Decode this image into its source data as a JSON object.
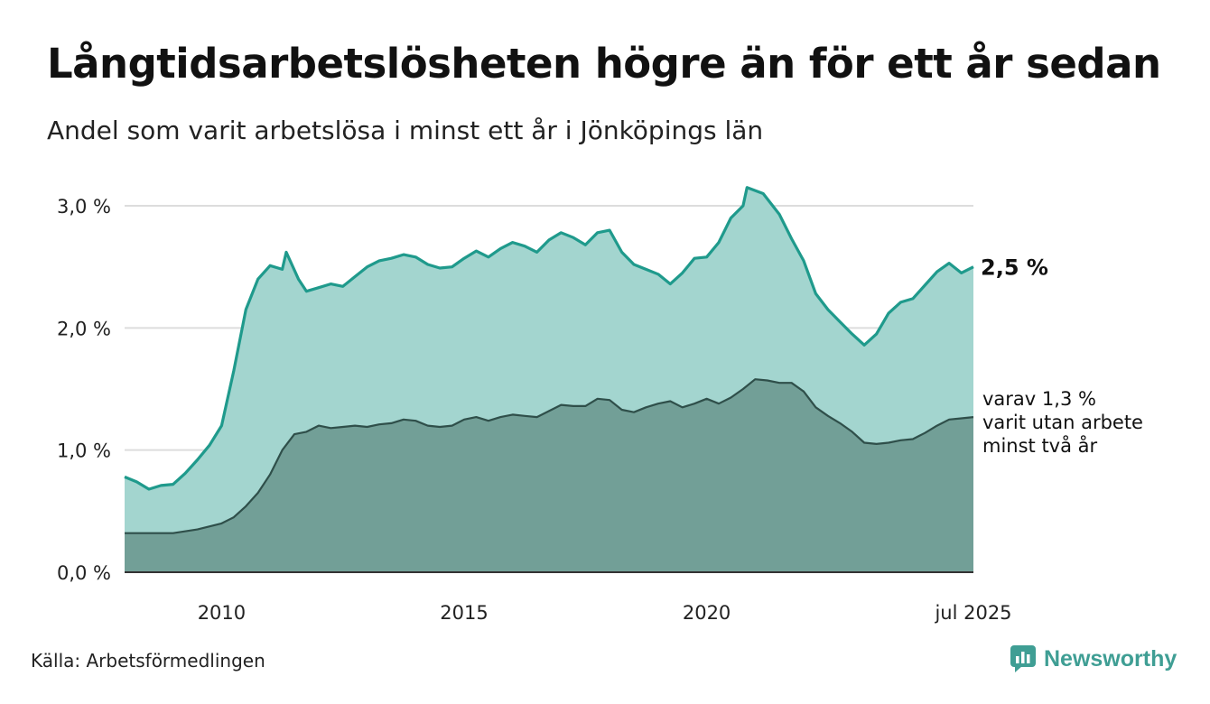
{
  "title": "Långtidsarbetslösheten högre än för ett år sedan",
  "subtitle": "Andel som varit arbetslösa i minst ett år i Jönköpings län",
  "source": "Källa: Arbetsförmedlingen",
  "brand": {
    "name": "Newsworthy",
    "icon": "newsworthy-logo-icon",
    "color": "#3f9e94"
  },
  "chart_data": {
    "type": "area",
    "x_start": "2008-01",
    "x_end": "2025-07",
    "ylim": [
      0,
      3.0
    ],
    "y_ticks": [
      {
        "value": 0,
        "label": "0,0 %"
      },
      {
        "value": 1,
        "label": "1,0 %"
      },
      {
        "value": 2,
        "label": "2,0 %"
      },
      {
        "value": 3,
        "label": "3,0 %"
      }
    ],
    "x_ticks": [
      {
        "date": "2010-01",
        "label": "2010"
      },
      {
        "date": "2015-01",
        "label": "2015"
      },
      {
        "date": "2020-01",
        "label": "2020"
      },
      {
        "date": "2025-07",
        "label": "jul 2025"
      }
    ],
    "grid": true,
    "colors": {
      "series1_fill": "#a3d5cf",
      "series1_line": "#1f9a8c",
      "series2_fill": "#729f97",
      "series2_line": "#2f4f4a"
    },
    "series": [
      {
        "end_label": "2,5 %",
        "points": [
          [
            "2008-01",
            0.78
          ],
          [
            "2008-04",
            0.74
          ],
          [
            "2008-07",
            0.68
          ],
          [
            "2008-10",
            0.71
          ],
          [
            "2009-01",
            0.72
          ],
          [
            "2009-04",
            0.81
          ],
          [
            "2009-07",
            0.92
          ],
          [
            "2009-10",
            1.04
          ],
          [
            "2010-01",
            1.2
          ],
          [
            "2010-04",
            1.65
          ],
          [
            "2010-07",
            2.15
          ],
          [
            "2010-10",
            2.4
          ],
          [
            "2011-01",
            2.51
          ],
          [
            "2011-04",
            2.48
          ],
          [
            "2011-05",
            2.62
          ],
          [
            "2011-08",
            2.4
          ],
          [
            "2011-10",
            2.3
          ],
          [
            "2012-01",
            2.33
          ],
          [
            "2012-04",
            2.36
          ],
          [
            "2012-07",
            2.34
          ],
          [
            "2012-10",
            2.42
          ],
          [
            "2013-01",
            2.5
          ],
          [
            "2013-04",
            2.55
          ],
          [
            "2013-07",
            2.57
          ],
          [
            "2013-10",
            2.6
          ],
          [
            "2014-01",
            2.58
          ],
          [
            "2014-04",
            2.52
          ],
          [
            "2014-07",
            2.49
          ],
          [
            "2014-10",
            2.5
          ],
          [
            "2015-01",
            2.57
          ],
          [
            "2015-04",
            2.63
          ],
          [
            "2015-07",
            2.58
          ],
          [
            "2015-10",
            2.65
          ],
          [
            "2016-01",
            2.7
          ],
          [
            "2016-04",
            2.67
          ],
          [
            "2016-07",
            2.62
          ],
          [
            "2016-10",
            2.72
          ],
          [
            "2017-01",
            2.78
          ],
          [
            "2017-04",
            2.74
          ],
          [
            "2017-07",
            2.68
          ],
          [
            "2017-10",
            2.78
          ],
          [
            "2018-01",
            2.8
          ],
          [
            "2018-04",
            2.62
          ],
          [
            "2018-07",
            2.52
          ],
          [
            "2018-10",
            2.48
          ],
          [
            "2019-01",
            2.44
          ],
          [
            "2019-04",
            2.36
          ],
          [
            "2019-07",
            2.45
          ],
          [
            "2019-10",
            2.57
          ],
          [
            "2020-01",
            2.58
          ],
          [
            "2020-04",
            2.7
          ],
          [
            "2020-07",
            2.9
          ],
          [
            "2020-10",
            3.0
          ],
          [
            "2020-11",
            3.15
          ],
          [
            "2021-03",
            3.1
          ],
          [
            "2021-07",
            2.93
          ],
          [
            "2021-10",
            2.73
          ],
          [
            "2022-01",
            2.55
          ],
          [
            "2022-04",
            2.28
          ],
          [
            "2022-07",
            2.15
          ],
          [
            "2022-10",
            2.05
          ],
          [
            "2023-01",
            1.95
          ],
          [
            "2023-04",
            1.86
          ],
          [
            "2023-07",
            1.95
          ],
          [
            "2023-10",
            2.12
          ],
          [
            "2024-01",
            2.21
          ],
          [
            "2024-04",
            2.24
          ],
          [
            "2024-07",
            2.35
          ],
          [
            "2024-10",
            2.46
          ],
          [
            "2025-01",
            2.53
          ],
          [
            "2025-04",
            2.45
          ],
          [
            "2025-07",
            2.5
          ]
        ]
      },
      {
        "end_label_lines": [
          "varav 1,3 %",
          "varit utan arbete",
          "minst två år"
        ],
        "points": [
          [
            "2008-01",
            0.32
          ],
          [
            "2008-07",
            0.32
          ],
          [
            "2009-01",
            0.32
          ],
          [
            "2009-07",
            0.35
          ],
          [
            "2010-01",
            0.4
          ],
          [
            "2010-04",
            0.45
          ],
          [
            "2010-07",
            0.54
          ],
          [
            "2010-10",
            0.65
          ],
          [
            "2011-01",
            0.8
          ],
          [
            "2011-04",
            1.0
          ],
          [
            "2011-07",
            1.13
          ],
          [
            "2011-10",
            1.15
          ],
          [
            "2012-01",
            1.2
          ],
          [
            "2012-04",
            1.18
          ],
          [
            "2012-07",
            1.19
          ],
          [
            "2012-10",
            1.2
          ],
          [
            "2013-01",
            1.19
          ],
          [
            "2013-04",
            1.21
          ],
          [
            "2013-07",
            1.22
          ],
          [
            "2013-10",
            1.25
          ],
          [
            "2014-01",
            1.24
          ],
          [
            "2014-04",
            1.2
          ],
          [
            "2014-07",
            1.19
          ],
          [
            "2014-10",
            1.2
          ],
          [
            "2015-01",
            1.25
          ],
          [
            "2015-04",
            1.27
          ],
          [
            "2015-07",
            1.24
          ],
          [
            "2015-10",
            1.27
          ],
          [
            "2016-01",
            1.29
          ],
          [
            "2016-04",
            1.28
          ],
          [
            "2016-07",
            1.27
          ],
          [
            "2016-10",
            1.32
          ],
          [
            "2017-01",
            1.37
          ],
          [
            "2017-04",
            1.36
          ],
          [
            "2017-07",
            1.36
          ],
          [
            "2017-10",
            1.42
          ],
          [
            "2018-01",
            1.41
          ],
          [
            "2018-04",
            1.33
          ],
          [
            "2018-07",
            1.31
          ],
          [
            "2018-10",
            1.35
          ],
          [
            "2019-01",
            1.38
          ],
          [
            "2019-04",
            1.4
          ],
          [
            "2019-07",
            1.35
          ],
          [
            "2019-10",
            1.38
          ],
          [
            "2020-01",
            1.42
          ],
          [
            "2020-04",
            1.38
          ],
          [
            "2020-07",
            1.43
          ],
          [
            "2020-10",
            1.5
          ],
          [
            "2021-01",
            1.58
          ],
          [
            "2021-04",
            1.57
          ],
          [
            "2021-07",
            1.55
          ],
          [
            "2021-10",
            1.55
          ],
          [
            "2022-01",
            1.48
          ],
          [
            "2022-04",
            1.35
          ],
          [
            "2022-07",
            1.28
          ],
          [
            "2022-10",
            1.22
          ],
          [
            "2023-01",
            1.15
          ],
          [
            "2023-04",
            1.06
          ],
          [
            "2023-07",
            1.05
          ],
          [
            "2023-10",
            1.06
          ],
          [
            "2024-01",
            1.08
          ],
          [
            "2024-04",
            1.09
          ],
          [
            "2024-07",
            1.14
          ],
          [
            "2024-10",
            1.2
          ],
          [
            "2025-01",
            1.25
          ],
          [
            "2025-04",
            1.26
          ],
          [
            "2025-07",
            1.27
          ]
        ]
      }
    ]
  }
}
